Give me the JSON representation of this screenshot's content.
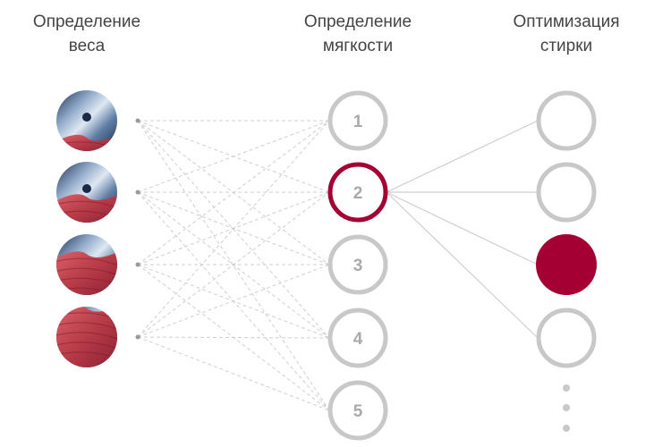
{
  "columns": [
    {
      "title_line1": "Определение",
      "title_line2": "веса"
    },
    {
      "title_line1": "Определение",
      "title_line2": "мягкости"
    },
    {
      "title_line1": "Оптимизация",
      "title_line2": "стирки"
    }
  ],
  "weight_levels": [
    0.25,
    0.45,
    0.7,
    1.0
  ],
  "softness_nodes": [
    "1",
    "2",
    "3",
    "4",
    "5"
  ],
  "selected_softness": 1,
  "wash_nodes": 4,
  "selected_wash": 2,
  "colors": {
    "accent": "#a50034",
    "ring": "#c8c8c8",
    "line": "#cfcfcf"
  }
}
